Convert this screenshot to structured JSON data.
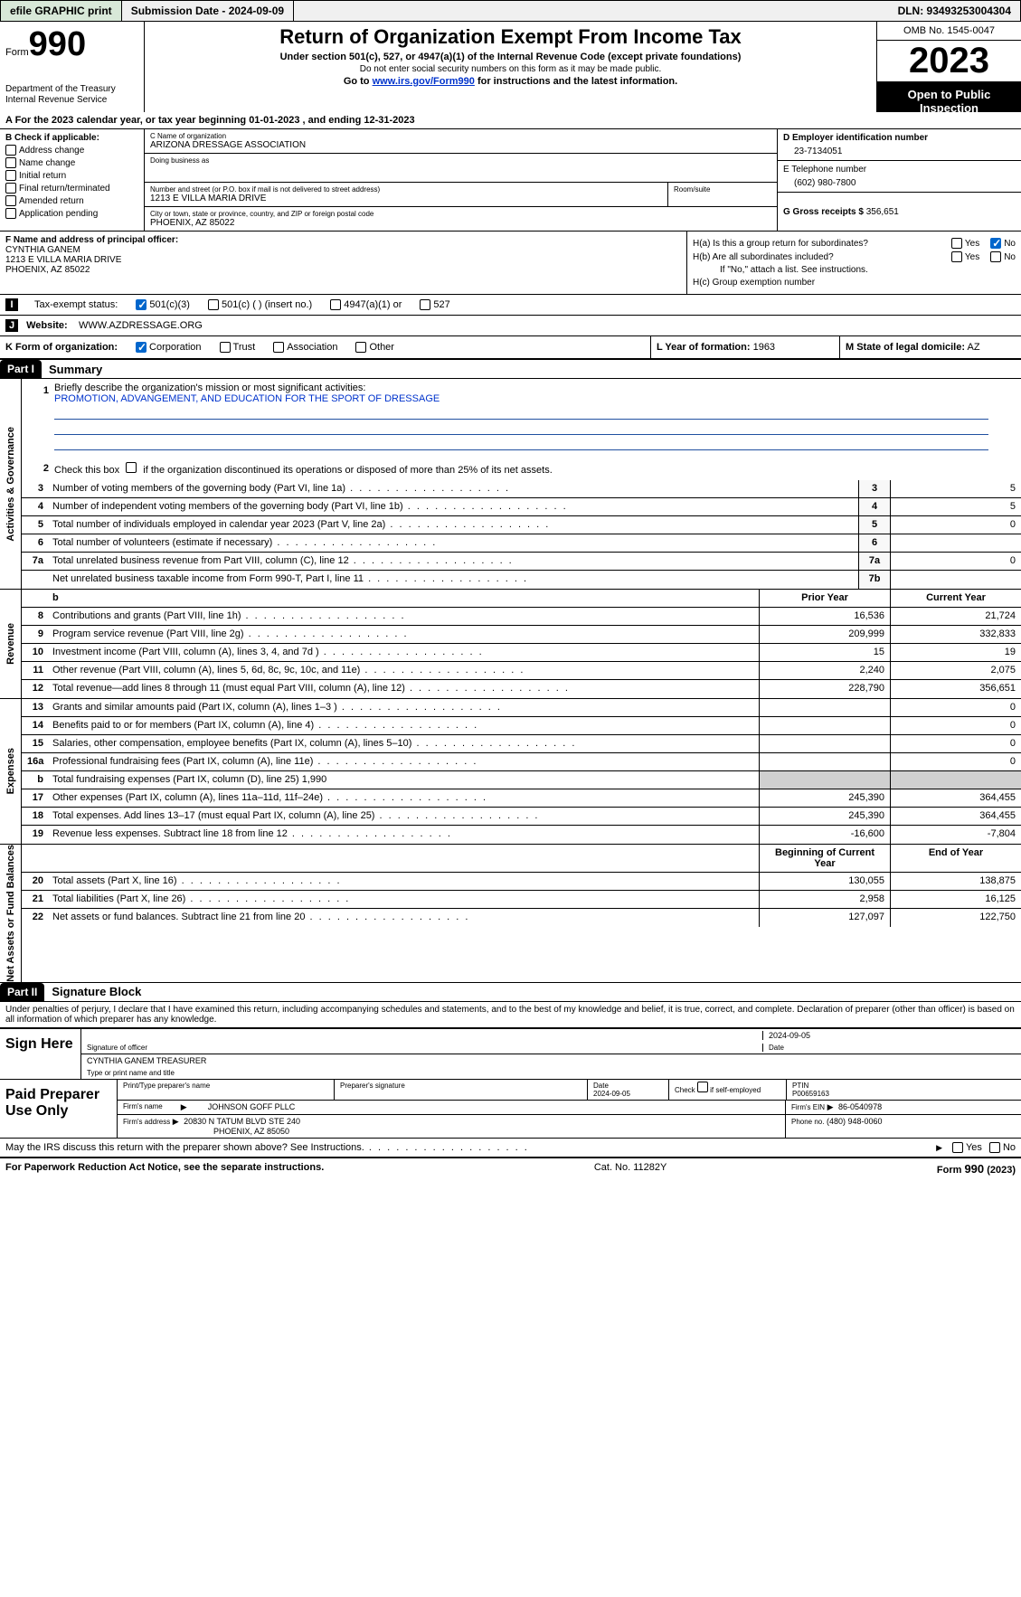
{
  "topbar": {
    "efile": "efile GRAPHIC print",
    "submission": "Submission Date - 2024-09-09",
    "dln": "DLN: 93493253004304"
  },
  "header": {
    "form_prefix": "Form",
    "form_no": "990",
    "title": "Return of Organization Exempt From Income Tax",
    "sub": "Under section 501(c), 527, or 4947(a)(1) of the Internal Revenue Code (except private foundations)",
    "sub2": "Do not enter social security numbers on this form as it may be made public.",
    "sub3_pre": "Go to ",
    "sub3_link": "www.irs.gov/Form990",
    "sub3_post": " for instructions and the latest information.",
    "dept": "Department of the Treasury\nInternal Revenue Service",
    "omb": "OMB No. 1545-0047",
    "year": "2023",
    "openpub": "Open to Public Inspection"
  },
  "row_a": "A For the 2023 calendar year, or tax year beginning 01-01-2023    , and ending 12-31-2023",
  "col_b": {
    "label": "B Check if applicable:",
    "items": [
      "Address change",
      "Name change",
      "Initial return",
      "Final return/terminated",
      "Amended return",
      "Application pending"
    ]
  },
  "org": {
    "c_lbl": "C Name of organization",
    "c_val": "ARIZONA DRESSAGE ASSOCIATION",
    "dba_lbl": "Doing business as",
    "dba_val": "",
    "addr_lbl": "Number and street (or P.O. box if mail is not delivered to street address)",
    "addr_val": "1213 E VILLA MARIA DRIVE",
    "room_lbl": "Room/suite",
    "city_lbl": "City or town, state or province, country, and ZIP or foreign postal code",
    "city_val": "PHOENIX, AZ  85022"
  },
  "right": {
    "d_lbl": "D Employer identification number",
    "d_val": "23-7134051",
    "e_lbl": "E Telephone number",
    "e_val": "(602) 980-7800",
    "g_lbl": "G Gross receipts $",
    "g_val": "356,651"
  },
  "f": {
    "lbl": "F  Name and address of principal officer:",
    "name": "CYNTHIA GANEM",
    "addr1": "1213 E VILLA MARIA DRIVE",
    "addr2": "PHOENIX, AZ  85022"
  },
  "h": {
    "ha_lbl": "H(a)  Is this a group return for subordinates?",
    "hb_lbl": "H(b)  Are all subordinates included?",
    "hb_note": "If \"No,\" attach a list. See instructions.",
    "hc_lbl": "H(c)  Group exemption number",
    "hc_val": ""
  },
  "row_i": {
    "lbl": "Tax-exempt status:",
    "opt1": "501(c)(3)",
    "opt2": "501(c) (  ) (insert no.)",
    "opt3": "4947(a)(1) or",
    "opt4": "527"
  },
  "row_j": {
    "lbl": "Website:",
    "val": "WWW.AZDRESSAGE.ORG"
  },
  "row_k": {
    "lbl": "K Form of organization:",
    "opts": [
      "Corporation",
      "Trust",
      "Association",
      "Other"
    ],
    "l_lbl": "L Year of formation:",
    "l_val": "1963",
    "m_lbl": "M State of legal domicile:",
    "m_val": "AZ"
  },
  "part1": {
    "hdr": "Part I",
    "title": "Summary",
    "mission_lbl": "Briefly describe the organization's mission or most significant activities:",
    "mission_val": "PROMOTION, ADVANGEMENT, AND EDUCATION FOR THE SPORT OF DRESSAGE",
    "line2": "Check this box      if the organization discontinued its operations or disposed of more than 25% of its net assets.",
    "sides": {
      "gov": "Activities & Governance",
      "rev": "Revenue",
      "exp": "Expenses",
      "net": "Net Assets or Fund Balances"
    },
    "gov_rows": [
      {
        "n": "3",
        "d": "Number of voting members of the governing body (Part VI, line 1a)",
        "c": "3",
        "v": "5"
      },
      {
        "n": "4",
        "d": "Number of independent voting members of the governing body (Part VI, line 1b)",
        "c": "4",
        "v": "5"
      },
      {
        "n": "5",
        "d": "Total number of individuals employed in calendar year 2023 (Part V, line 2a)",
        "c": "5",
        "v": "0"
      },
      {
        "n": "6",
        "d": "Total number of volunteers (estimate if necessary)",
        "c": "6",
        "v": ""
      },
      {
        "n": "7a",
        "d": "Total unrelated business revenue from Part VIII, column (C), line 12",
        "c": "7a",
        "v": "0"
      },
      {
        "n": "",
        "d": "Net unrelated business taxable income from Form 990-T, Part I, line 11",
        "c": "7b",
        "v": ""
      }
    ],
    "col_hdrs": {
      "prior": "Prior Year",
      "curr": "Current Year"
    },
    "rev_rows": [
      {
        "n": "8",
        "d": "Contributions and grants (Part VIII, line 1h)",
        "p": "16,536",
        "c": "21,724"
      },
      {
        "n": "9",
        "d": "Program service revenue (Part VIII, line 2g)",
        "p": "209,999",
        "c": "332,833"
      },
      {
        "n": "10",
        "d": "Investment income (Part VIII, column (A), lines 3, 4, and 7d )",
        "p": "15",
        "c": "19"
      },
      {
        "n": "11",
        "d": "Other revenue (Part VIII, column (A), lines 5, 6d, 8c, 9c, 10c, and 11e)",
        "p": "2,240",
        "c": "2,075"
      },
      {
        "n": "12",
        "d": "Total revenue—add lines 8 through 11 (must equal Part VIII, column (A), line 12)",
        "p": "228,790",
        "c": "356,651"
      }
    ],
    "exp_rows": [
      {
        "n": "13",
        "d": "Grants and similar amounts paid (Part IX, column (A), lines 1–3 )",
        "p": "",
        "c": "0"
      },
      {
        "n": "14",
        "d": "Benefits paid to or for members (Part IX, column (A), line 4)",
        "p": "",
        "c": "0"
      },
      {
        "n": "15",
        "d": "Salaries, other compensation, employee benefits (Part IX, column (A), lines 5–10)",
        "p": "",
        "c": "0"
      },
      {
        "n": "16a",
        "d": "Professional fundraising fees (Part IX, column (A), line 11e)",
        "p": "",
        "c": "0"
      },
      {
        "n": "b",
        "d": "Total fundraising expenses (Part IX, column (D), line 25) 1,990",
        "p": "GRAY",
        "c": "GRAY"
      },
      {
        "n": "17",
        "d": "Other expenses (Part IX, column (A), lines 11a–11d, 11f–24e)",
        "p": "245,390",
        "c": "364,455"
      },
      {
        "n": "18",
        "d": "Total expenses. Add lines 13–17 (must equal Part IX, column (A), line 25)",
        "p": "245,390",
        "c": "364,455"
      },
      {
        "n": "19",
        "d": "Revenue less expenses. Subtract line 18 from line 12",
        "p": "-16,600",
        "c": "-7,804"
      }
    ],
    "net_hdrs": {
      "b": "Beginning of Current Year",
      "e": "End of Year"
    },
    "net_rows": [
      {
        "n": "20",
        "d": "Total assets (Part X, line 16)",
        "p": "130,055",
        "c": "138,875"
      },
      {
        "n": "21",
        "d": "Total liabilities (Part X, line 26)",
        "p": "2,958",
        "c": "16,125"
      },
      {
        "n": "22",
        "d": "Net assets or fund balances. Subtract line 21 from line 20",
        "p": "127,097",
        "c": "122,750"
      }
    ]
  },
  "part2": {
    "hdr": "Part II",
    "title": "Signature Block",
    "decl": "Under penalties of perjury, I declare that I have examined this return, including accompanying schedules and statements, and to the best of my knowledge and belief, it is true, correct, and complete. Declaration of preparer (other than officer) is based on all information of which preparer has any knowledge."
  },
  "sign": {
    "left": "Sign Here",
    "date": "2024-09-05",
    "sig_lbl": "Signature of officer",
    "name": "CYNTHIA GANEM  TREASURER",
    "type_lbl": "Type or print name and title",
    "date_lbl": "Date"
  },
  "preparer": {
    "left": "Paid Preparer Use Only",
    "h1": "Print/Type preparer's name",
    "h2": "Preparer's signature",
    "h3_lbl": "Date",
    "h3": "2024-09-05",
    "h4_lbl": "Check        if self-employed",
    "h5_lbl": "PTIN",
    "h5": "P00659163",
    "firm_lbl": "Firm's name",
    "firm": "JOHNSON GOFF PLLC",
    "ein_lbl": "Firm's EIN",
    "ein": "86-0540978",
    "addr_lbl": "Firm's address",
    "addr1": "20830 N TATUM BLVD STE 240",
    "addr2": "PHOENIX, AZ  85050",
    "phone_lbl": "Phone no.",
    "phone": "(480) 948-0060"
  },
  "discuss": "May the IRS discuss this return with the preparer shown above? See Instructions.",
  "footer": {
    "left": "For Paperwork Reduction Act Notice, see the separate instructions.",
    "mid": "Cat. No. 11282Y",
    "right_pre": "Form ",
    "right_form": "990",
    "right_post": " (2023)"
  },
  "yn": {
    "yes": "Yes",
    "no": "No"
  }
}
